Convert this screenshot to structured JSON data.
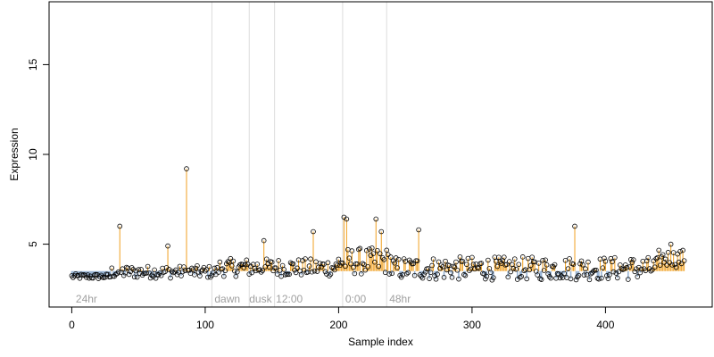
{
  "chart_data": {
    "type": "scatter",
    "title": "",
    "xlabel": "Sample index",
    "ylabel": "Expression",
    "xlim": [
      -17,
      480
    ],
    "ylim": [
      1.5,
      18.5
    ],
    "xticks": [
      0,
      100,
      200,
      300,
      400
    ],
    "yticks": [
      5,
      10,
      15
    ],
    "baseline": 3.5,
    "grid": false,
    "vlines": [
      105,
      133,
      152,
      203,
      236
    ],
    "annotations": [
      {
        "label": "24hr",
        "x": 3
      },
      {
        "label": "dawn",
        "x": 107
      },
      {
        "label": "dusk",
        "x": 133
      },
      {
        "label": "12:00",
        "x": 153
      },
      {
        "label": "0:00",
        "x": 205
      },
      {
        "label": "48hr",
        "x": 238
      }
    ],
    "n_points": 460,
    "peaks": [
      {
        "x": 36,
        "y": 6.0
      },
      {
        "x": 72,
        "y": 4.9
      },
      {
        "x": 86,
        "y": 9.2
      },
      {
        "x": 144,
        "y": 5.2
      },
      {
        "x": 181,
        "y": 5.7
      },
      {
        "x": 204,
        "y": 6.5
      },
      {
        "x": 206,
        "y": 6.4
      },
      {
        "x": 228,
        "y": 6.4
      },
      {
        "x": 232,
        "y": 5.7
      },
      {
        "x": 260,
        "y": 5.8
      },
      {
        "x": 377,
        "y": 6.0
      },
      {
        "x": 449,
        "y": 5.0
      }
    ],
    "colors": {
      "above_baseline": "#f0a020",
      "below_baseline": "#98b4d4",
      "point_edge": "#000000",
      "vline": "#dcdcdc",
      "annotation": "#a0a0a0"
    }
  }
}
